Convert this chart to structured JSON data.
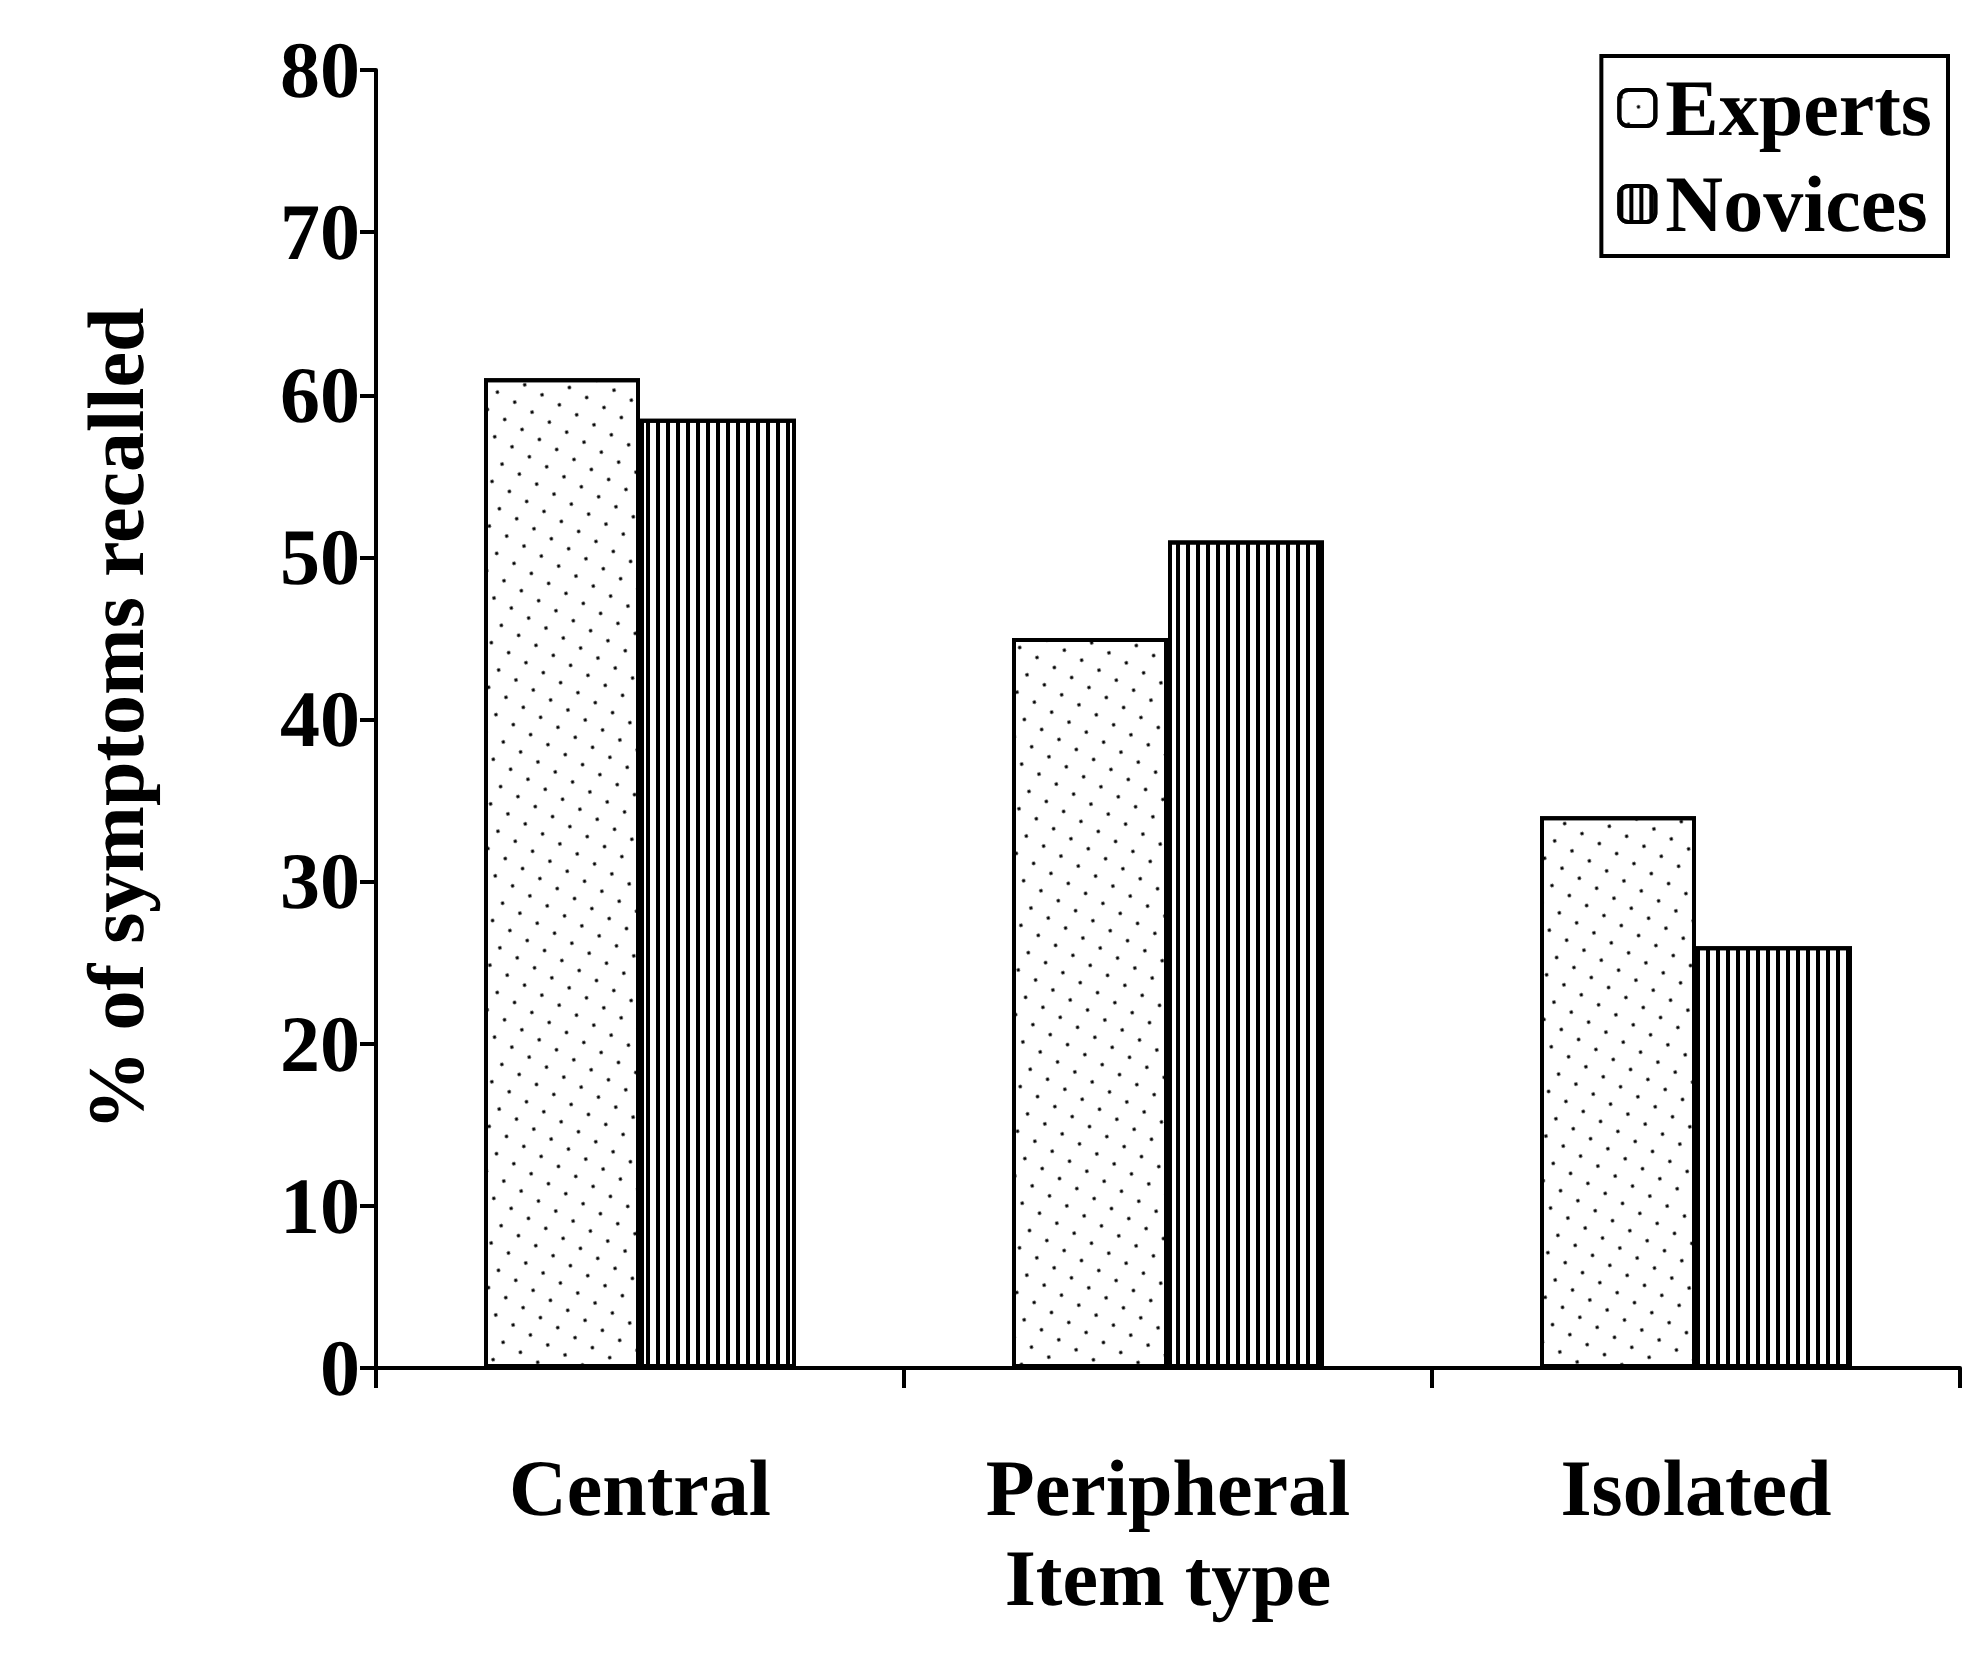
{
  "chart_data": {
    "type": "bar",
    "xlabel": "Item type",
    "ylabel": "% of symptoms recalled",
    "categories": [
      "Central",
      "Peripheral",
      "Isolated"
    ],
    "series": [
      {
        "name": "Experts",
        "color": "#ffffff",
        "values": [
          61,
          45,
          34
        ]
      },
      {
        "name": "Novices",
        "color": "#ffffff",
        "values": [
          58.5,
          51,
          26
        ]
      }
    ],
    "ylim": [
      0,
      80
    ],
    "yticks": [
      0,
      10,
      20,
      30,
      40,
      50,
      60,
      70,
      80
    ],
    "grid": false,
    "legend": "top right"
  }
}
